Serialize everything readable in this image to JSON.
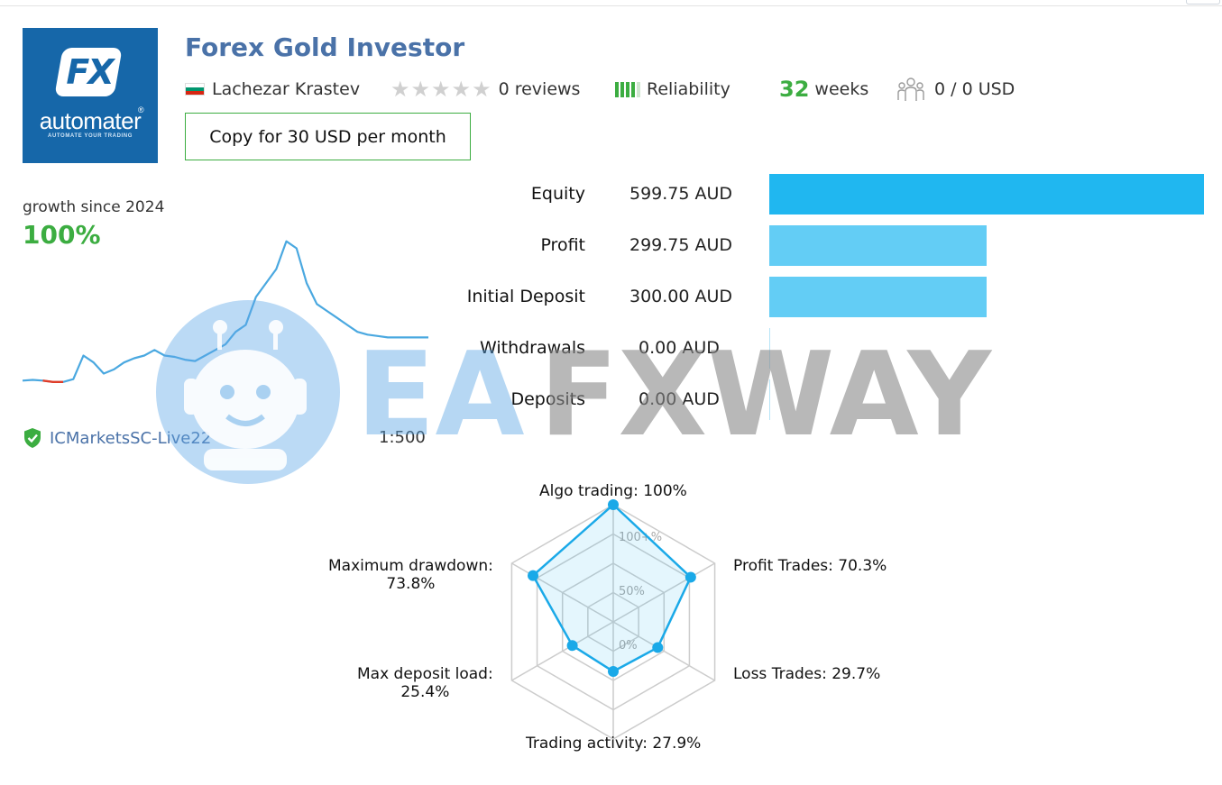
{
  "logo": {
    "mark": "FX",
    "brand": "automater",
    "registered": "®",
    "tagline": "AUTOMATE YOUR TRADING"
  },
  "title": "Forex Gold Investor",
  "author": {
    "name": "Lachezar Krastev",
    "flag": "bulgaria-flag-icon"
  },
  "reviews": {
    "rating_stars": 0,
    "max_stars": 5,
    "text": "0 reviews"
  },
  "reliability": {
    "label": "Reliability",
    "level": 4,
    "max_level": 5,
    "color": "#3cad41"
  },
  "weeks": {
    "value": "32",
    "label": "weeks"
  },
  "subscribers": {
    "text": "0 / 0 USD",
    "icon": "subscribers-icon"
  },
  "copy_button": {
    "label": "Copy for 30 USD per month"
  },
  "growth": {
    "label": "growth since 2024",
    "value": "100%"
  },
  "broker": {
    "name": "ICMarketsSC-Live22",
    "leverage": "1:500",
    "icon": "verified-shield-icon"
  },
  "stats": [
    {
      "label": "Equity",
      "value": "599.75 AUD",
      "amount": 599.75,
      "color": "#20b7f0"
    },
    {
      "label": "Profit",
      "value": "299.75 AUD",
      "amount": 299.75,
      "color": "#63cdf5"
    },
    {
      "label": "Initial Deposit",
      "value": "300.00 AUD",
      "amount": 300.0,
      "color": "#63cdf5"
    },
    {
      "label": "Withdrawals",
      "value": "0.00 AUD",
      "amount": 0,
      "color": "#63cdf5"
    },
    {
      "label": "Deposits",
      "value": "0.00 AUD",
      "amount": 0,
      "color": "#63cdf5"
    }
  ],
  "watermark": {
    "text": "EAFXWAY"
  },
  "radar": {
    "axes": [
      {
        "label": "Algo trading: 100%",
        "value": 100
      },
      {
        "label": "Profit Trades: 70.3%",
        "value": 70.3
      },
      {
        "label": "Loss Trades: 29.7%",
        "value": 29.7
      },
      {
        "label": "Trading activity: 27.9%",
        "value": 27.9
      },
      {
        "label": "Max deposit load:\n25.4%",
        "value": 25.4
      },
      {
        "label": "Maximum drawdown:\n73.8%",
        "value": 73.8
      }
    ],
    "rings": [
      "0%",
      "50%",
      "100+%"
    ]
  },
  "chart_data": {
    "type": "line",
    "title": "",
    "xlabel": "",
    "ylabel": "",
    "x": [
      0,
      1,
      2,
      3,
      4,
      5,
      6,
      7,
      8,
      9,
      10,
      11,
      12,
      13,
      14,
      15,
      16,
      17,
      18,
      19,
      20,
      21,
      22,
      23,
      24,
      25,
      26,
      27,
      28,
      29,
      30,
      31,
      32,
      33,
      34,
      35,
      36,
      37,
      38,
      39,
      40
    ],
    "series": [
      {
        "values": [
          0,
          0.5,
          0,
          -1,
          -1,
          1,
          18,
          13,
          5,
          8,
          13,
          16,
          18,
          22,
          18,
          17,
          15,
          14,
          18,
          22,
          26,
          35,
          40,
          60,
          70,
          80,
          100,
          95,
          70,
          55,
          50,
          45,
          40,
          35,
          33,
          32,
          31,
          31,
          31,
          31,
          31
        ]
      }
    ],
    "ylim": [
      -5,
      105
    ],
    "grid": false,
    "line_color": "#4aa8e0",
    "drawdown_color": "#e03c28"
  }
}
